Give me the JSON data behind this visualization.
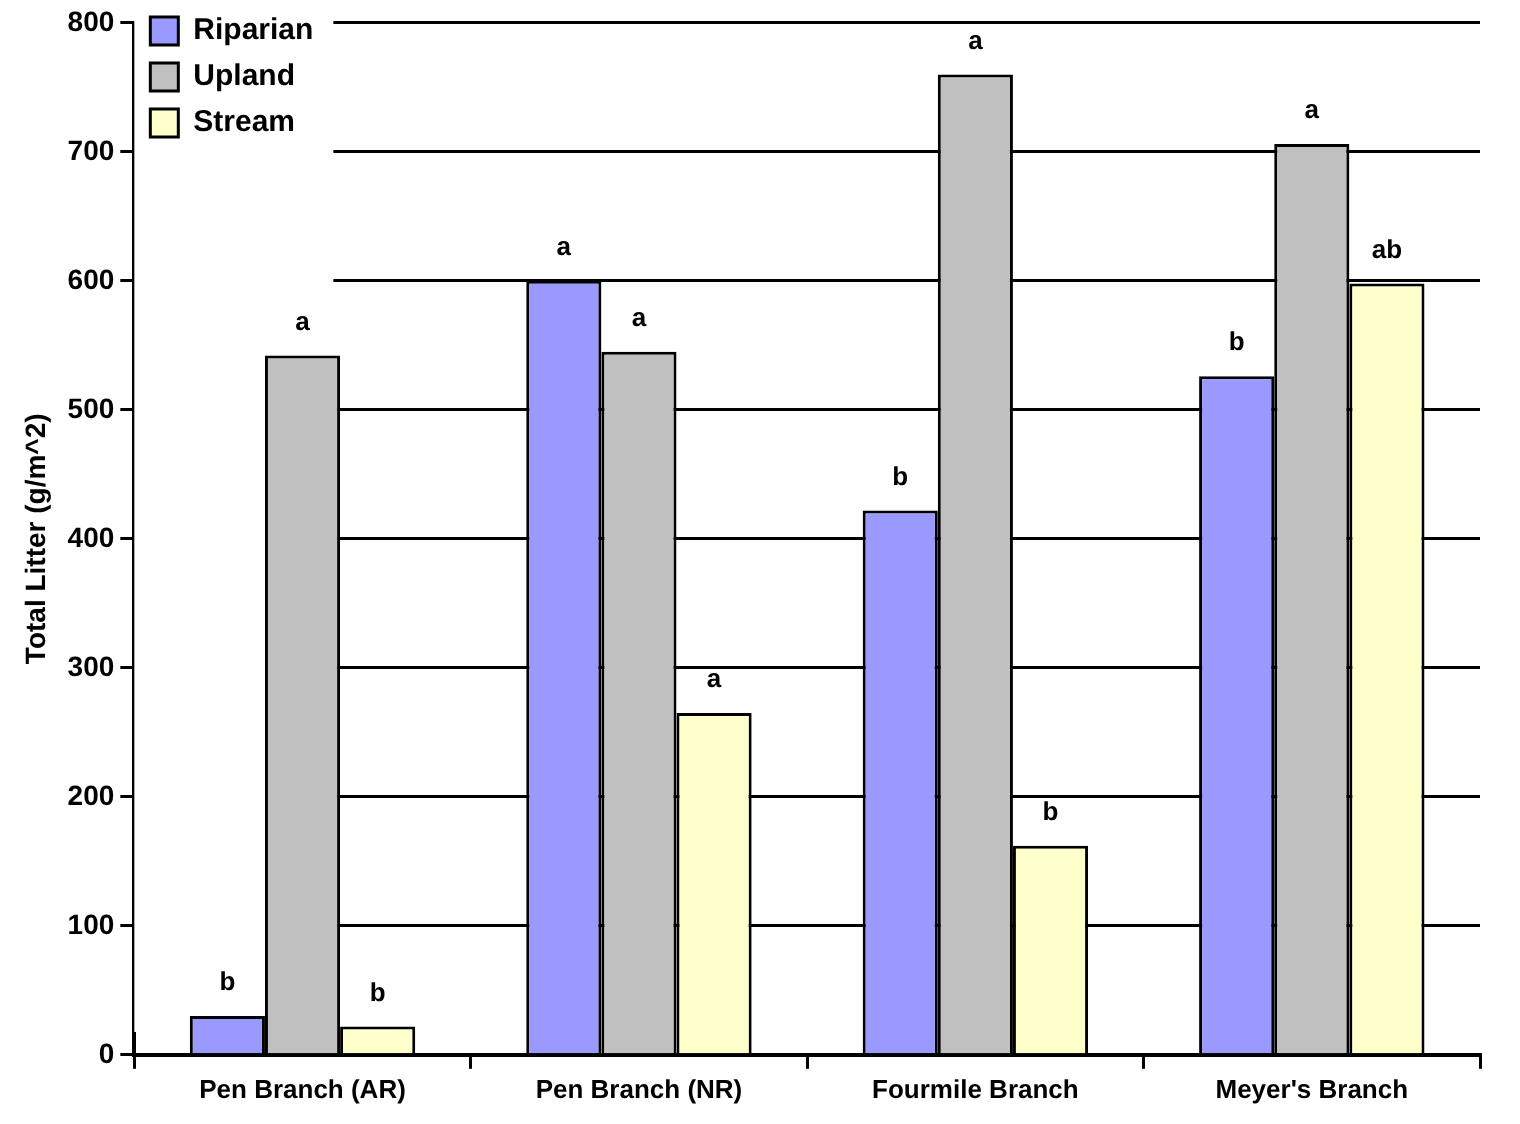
{
  "chart_data": {
    "type": "bar",
    "ylabel": "Total Litter (g/m^2)",
    "categories": [
      "Pen Branch (AR)",
      "Pen Branch (NR)",
      "Fourmile Branch",
      "Meyer's Branch"
    ],
    "series": [
      {
        "name": "Riparian",
        "color": "#9999ff",
        "values": [
          30,
          600,
          422,
          526
        ],
        "value_labels": [
          "b",
          "a",
          "b",
          "b"
        ]
      },
      {
        "name": "Upland",
        "color": "#c0c0c0",
        "values": [
          542,
          545,
          760,
          706
        ],
        "value_labels": [
          "a",
          "a",
          "a",
          "a"
        ]
      },
      {
        "name": "Stream",
        "color": "#ffffcc",
        "values": [
          22,
          265,
          162,
          598
        ],
        "value_labels": [
          "b",
          "a",
          "b",
          "ab"
        ]
      }
    ],
    "ylim": [
      0,
      800
    ],
    "yticks": [
      0,
      100,
      200,
      300,
      400,
      500,
      600,
      700,
      800
    ],
    "grid": "y",
    "legend": "top left"
  }
}
